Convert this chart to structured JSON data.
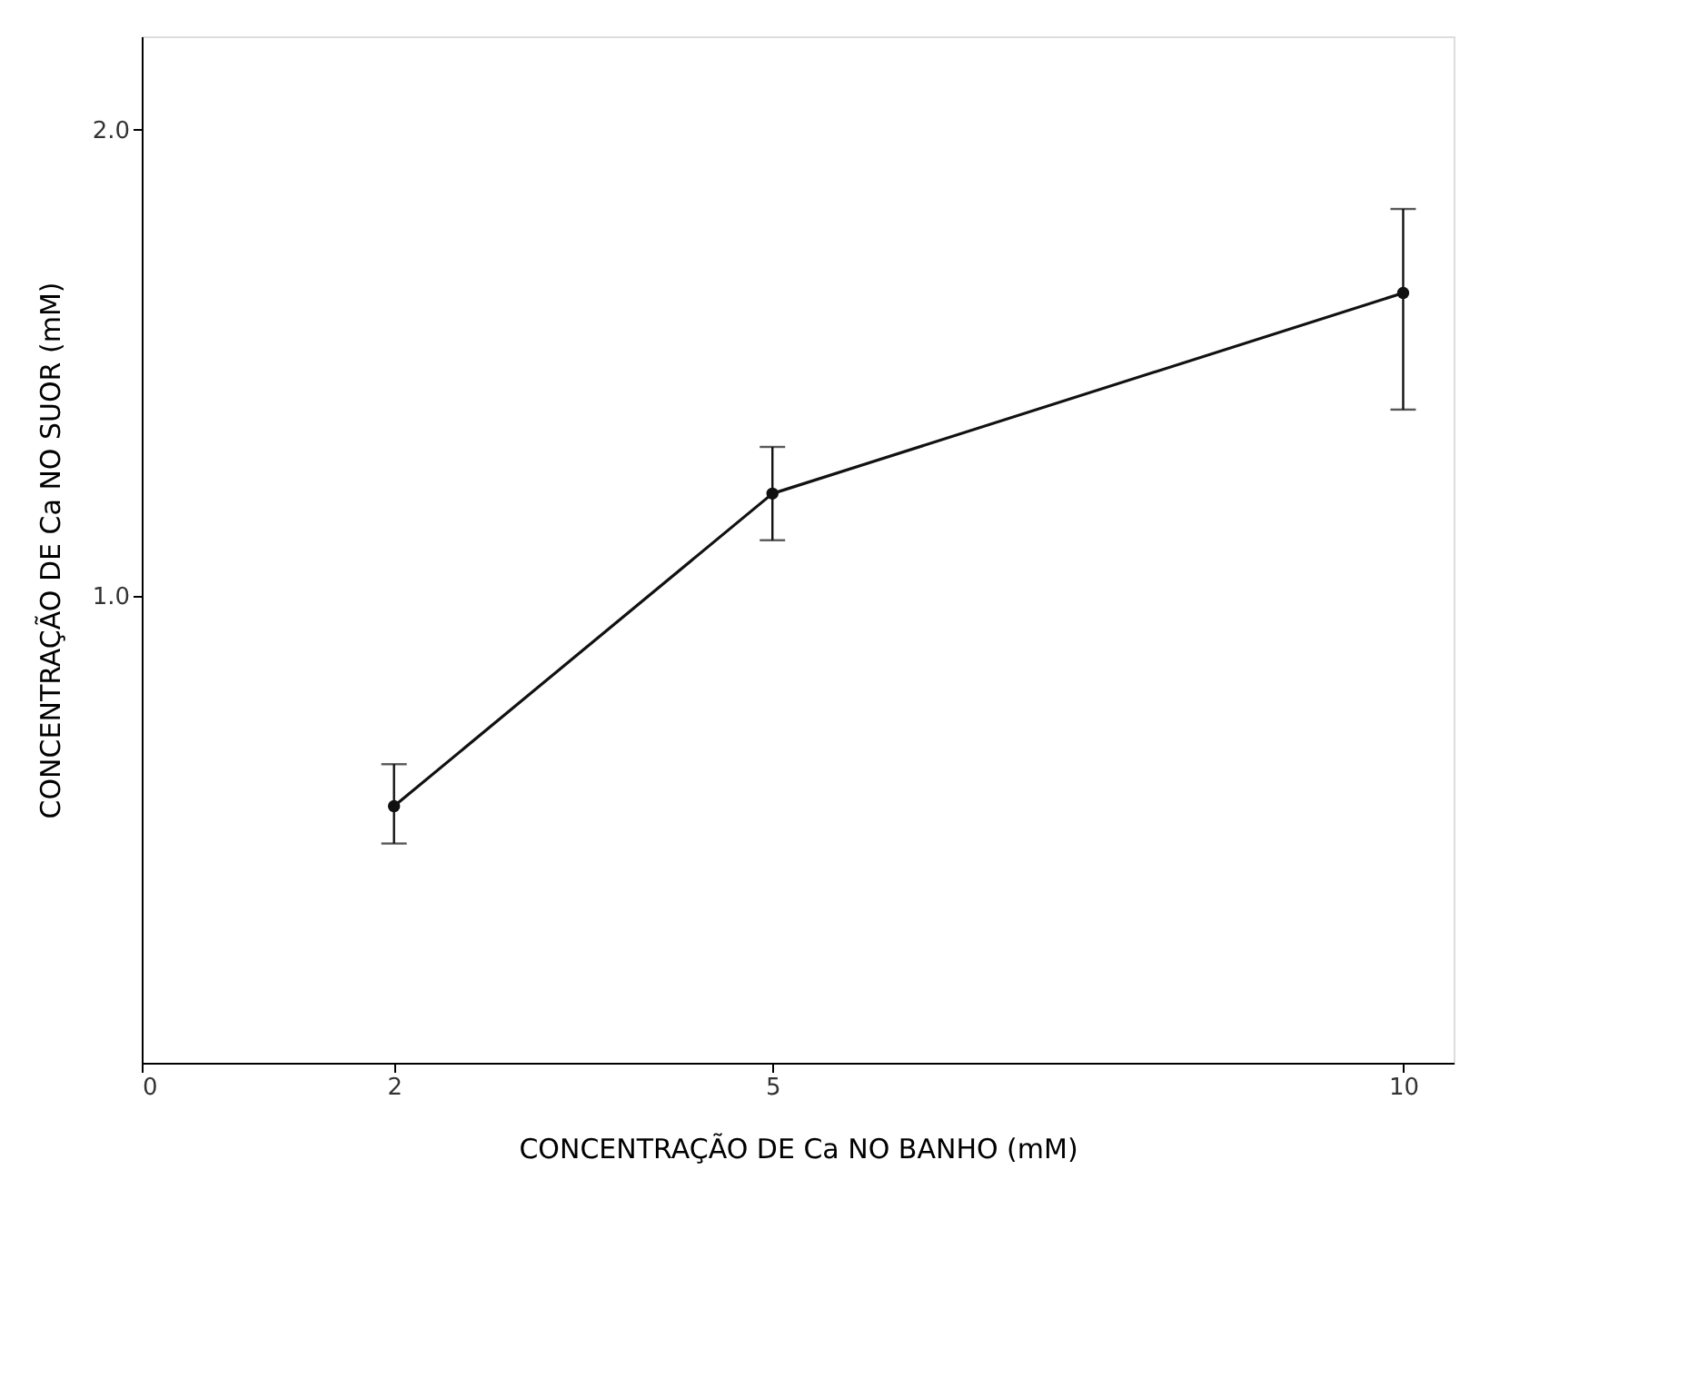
{
  "chart_data": {
    "type": "line",
    "xlabel": "CONCENTRAÇÃO DE Ca NO BANHO (mM)",
    "ylabel": "CONCENTRAÇÃO DE Ca NO SUOR (mM)",
    "x": [
      2,
      5,
      10
    ],
    "series": [
      {
        "color": "#111111",
        "values": [
          0.55,
          1.22,
          1.65
        ],
        "errors": [
          [
            0.47,
            0.64
          ],
          [
            1.12,
            1.32
          ],
          [
            1.4,
            1.83
          ]
        ]
      }
    ],
    "xlim": [
      0,
      10.4
    ],
    "xticks": [
      0,
      2,
      5,
      10
    ],
    "ylim": [
      0,
      2.2
    ],
    "yticks": [
      {
        "value": 1,
        "label": "1.0"
      },
      {
        "value": 2,
        "label": "2.0"
      }
    ],
    "grid": false,
    "marker": "circle",
    "line_style": "solid"
  }
}
